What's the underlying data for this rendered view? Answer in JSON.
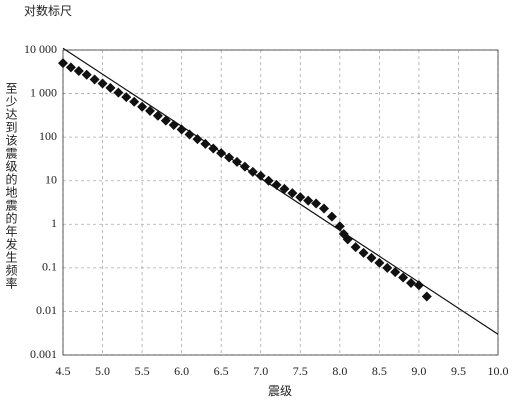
{
  "chart_data": {
    "type": "scatter",
    "title": "对数标尺",
    "y_label": "至少达到该震级的地震的年发生频率",
    "x_label": "震级",
    "xlim": [
      4.5,
      10.0
    ],
    "xticks": [
      4.5,
      {
        "value": 5,
        "label": "5.0"
      },
      5.5,
      {
        "value": 6,
        "label": "6.0"
      },
      6.5,
      {
        "value": 7,
        "label": "7.0"
      },
      7.5,
      {
        "value": 8,
        "label": "8.0"
      },
      8.5,
      {
        "value": 9,
        "label": "9.0"
      },
      9.5,
      {
        "value": 10,
        "label": "10.0"
      }
    ],
    "ylim": [
      0.001,
      10000
    ],
    "yticks": [
      0.001,
      0.01,
      0.1,
      1,
      10,
      100,
      {
        "value": 1000,
        "label": "1 000"
      },
      {
        "value": 10000,
        "label": "10 000"
      }
    ],
    "y_log": true,
    "grid": true,
    "series": [
      {
        "type": "scatter",
        "color": "#111111",
        "x": [
          4.5,
          4.6,
          4.7,
          4.8,
          4.9,
          5.0,
          5.1,
          5.2,
          5.3,
          5.4,
          5.5,
          5.6,
          5.7,
          5.8,
          5.9,
          6.0,
          6.1,
          6.2,
          6.3,
          6.4,
          6.5,
          6.6,
          6.7,
          6.8,
          6.9,
          7.0,
          7.1,
          7.2,
          7.3,
          7.4,
          7.5,
          7.6,
          7.7,
          7.8,
          7.9,
          8.0,
          8.05,
          8.1,
          8.2,
          8.3,
          8.4,
          8.5,
          8.6,
          8.7,
          8.8,
          8.9,
          9.0,
          9.1
        ],
        "values": [
          5000,
          4000,
          3300,
          2700,
          2100,
          1700,
          1350,
          1050,
          830,
          650,
          500,
          400,
          310,
          240,
          190,
          150,
          115,
          90,
          70,
          55,
          43,
          34,
          27,
          21,
          16,
          13,
          10,
          8,
          6.5,
          5.2,
          4.2,
          3.5,
          3,
          2.3,
          1.5,
          0.9,
          0.6,
          0.45,
          0.3,
          0.22,
          0.17,
          0.13,
          0.1,
          0.08,
          0.06,
          0.045,
          0.04,
          0.022
        ]
      },
      {
        "type": "line",
        "color": "#111111",
        "x": [
          4.5,
          10.0
        ],
        "values": [
          11000,
          0.003
        ]
      }
    ]
  }
}
